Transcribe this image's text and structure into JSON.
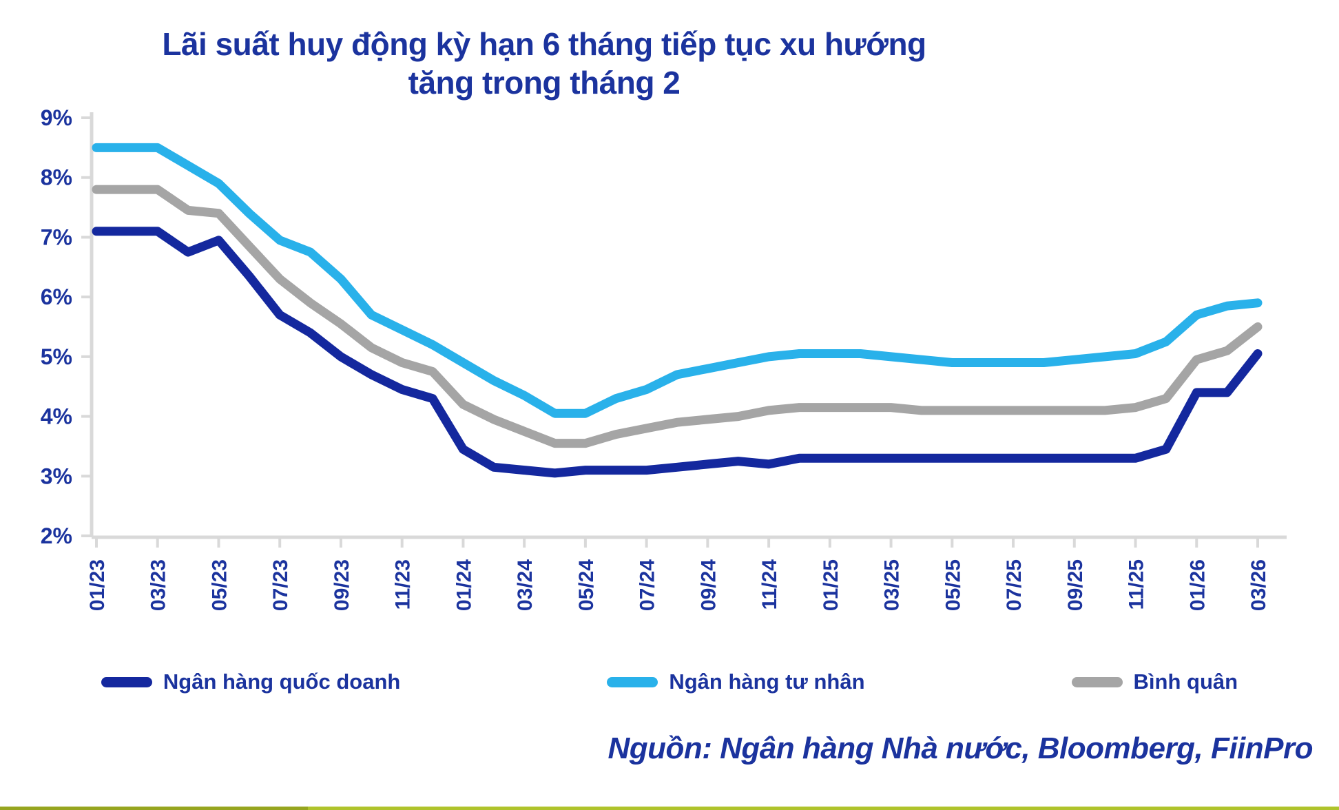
{
  "title": {
    "line1": "Lãi suất huy động kỳ hạn 6 tháng tiếp tục xu hướng",
    "line2": "tăng trong tháng 2"
  },
  "source_note": "Nguồn:  Ngân hàng Nhà nước, Bloomberg, FiinPro",
  "colors": {
    "text_navy": "#1B339E",
    "axis_gray": "#D9D9D9",
    "border_olive": "#96A51F",
    "border_green": "#AFC32B"
  },
  "legend": [
    {
      "label": "Ngân hàng quốc doanh",
      "color": "#14289E"
    },
    {
      "label": "Ngân hàng tư nhân",
      "color": "#29B1EA"
    },
    {
      "label": "Bình quân",
      "color": "#A5A5A5"
    }
  ],
  "chart_data": {
    "type": "line",
    "title": "Lãi suất huy động kỳ hạn 6 tháng tiếp tục xu hướng tăng trong tháng 2",
    "unit": "%",
    "ylim": [
      2,
      9
    ],
    "yticks": [
      2,
      3,
      4,
      5,
      6,
      7,
      8,
      9
    ],
    "ytick_labels": [
      "2%",
      "3%",
      "4%",
      "5%",
      "6%",
      "7%",
      "8%",
      "9%"
    ],
    "grid": false,
    "legend_position": "bottom",
    "x": [
      "01/23",
      "02/23",
      "03/23",
      "04/23",
      "05/23",
      "06/23",
      "07/23",
      "08/23",
      "09/23",
      "10/23",
      "11/23",
      "12/23",
      "01/24",
      "02/24",
      "03/24",
      "04/24",
      "05/24",
      "06/24",
      "07/24",
      "08/24",
      "09/24",
      "10/24",
      "11/24",
      "12/24",
      "01/25",
      "02/25",
      "03/25",
      "04/25",
      "05/25",
      "06/25",
      "07/25",
      "08/25",
      "09/25",
      "10/25",
      "11/25",
      "12/25",
      "01/26",
      "02/26",
      "03/26"
    ],
    "x_tick_labels": [
      "01/23",
      "03/23",
      "05/23",
      "07/23",
      "09/23",
      "11/23",
      "01/24",
      "03/24",
      "05/24",
      "07/24",
      "09/24",
      "11/24",
      "01/25",
      "03/25",
      "05/25",
      "07/25",
      "09/25",
      "11/25",
      "01/26",
      "03/26"
    ],
    "series": [
      {
        "name": "Ngân hàng quốc doanh",
        "color": "#14289E",
        "values": [
          7.1,
          7.1,
          7.1,
          6.75,
          6.95,
          6.35,
          5.7,
          5.4,
          5.0,
          4.7,
          4.45,
          4.3,
          3.45,
          3.15,
          3.1,
          3.05,
          3.1,
          3.1,
          3.1,
          3.15,
          3.2,
          3.25,
          3.2,
          3.3,
          3.3,
          3.3,
          3.3,
          3.3,
          3.3,
          3.3,
          3.3,
          3.3,
          3.3,
          3.3,
          3.3,
          3.45,
          4.4,
          4.4,
          5.05
        ]
      },
      {
        "name": "Ngân hàng tư nhân",
        "color": "#29B1EA",
        "values": [
          8.5,
          8.5,
          8.5,
          8.2,
          7.9,
          7.4,
          6.95,
          6.75,
          6.3,
          5.7,
          5.45,
          5.2,
          4.9,
          4.6,
          4.35,
          4.05,
          4.05,
          4.3,
          4.45,
          4.7,
          4.8,
          4.9,
          5.0,
          5.05,
          5.05,
          5.05,
          5.0,
          4.95,
          4.9,
          4.9,
          4.9,
          4.9,
          4.95,
          5.0,
          5.05,
          5.25,
          5.7,
          5.85,
          5.9
        ]
      },
      {
        "name": "Bình quân",
        "color": "#A5A5A5",
        "values": [
          7.8,
          7.8,
          7.8,
          7.45,
          7.4,
          6.85,
          6.3,
          5.9,
          5.55,
          5.15,
          4.9,
          4.75,
          4.2,
          3.95,
          3.75,
          3.55,
          3.55,
          3.7,
          3.8,
          3.9,
          3.95,
          4.0,
          4.1,
          4.15,
          4.15,
          4.15,
          4.15,
          4.1,
          4.1,
          4.1,
          4.1,
          4.1,
          4.1,
          4.1,
          4.15,
          4.3,
          4.95,
          5.1,
          5.5
        ]
      }
    ]
  }
}
